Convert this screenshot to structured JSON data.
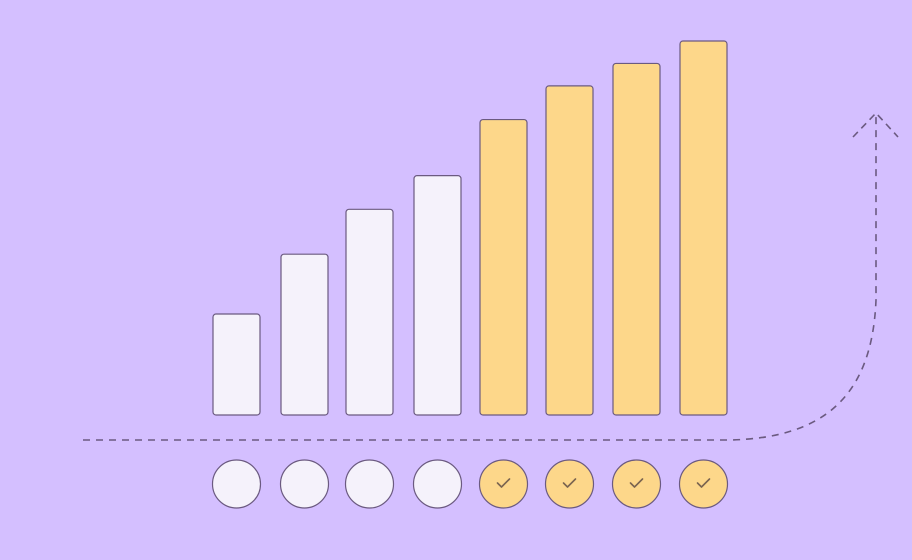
{
  "colors": {
    "background": "#d4bfff",
    "pending": "#f5f2fb",
    "completed": "#fdd78a",
    "stroke": "#6b5a80"
  },
  "bars": [
    {
      "level": 27,
      "status": "pending"
    },
    {
      "level": 43,
      "status": "pending"
    },
    {
      "level": 55,
      "status": "pending"
    },
    {
      "level": 64,
      "status": "pending"
    },
    {
      "level": 79,
      "status": "completed"
    },
    {
      "level": 88,
      "status": "completed"
    },
    {
      "level": 94,
      "status": "completed"
    },
    {
      "level": 100,
      "status": "completed"
    }
  ],
  "trend_arrow_icon": "dashed-arrow-up",
  "check_icon": "checkmark"
}
